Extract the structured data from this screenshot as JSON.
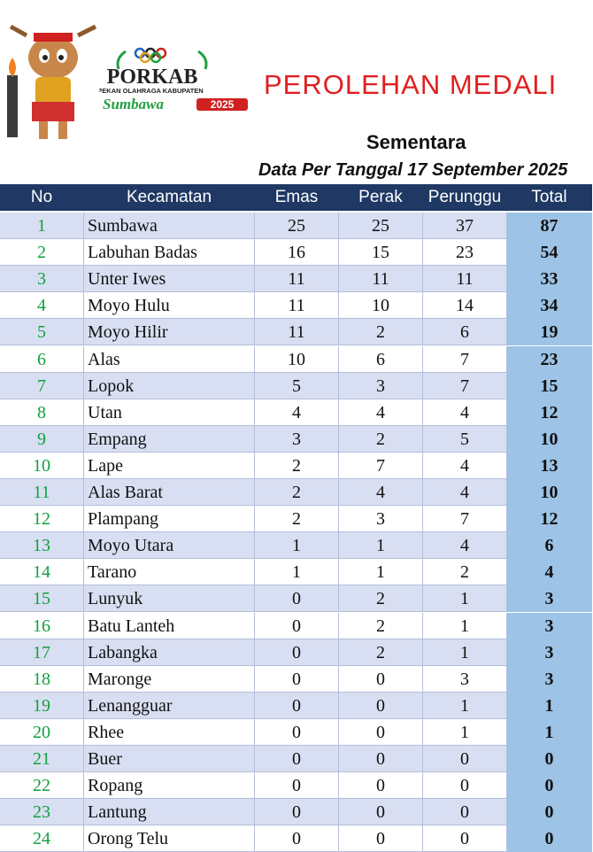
{
  "logo": {
    "name": "PORKAB",
    "subtitle": "PEKAN OLAHRAGA KABUPATEN",
    "region": "Sumbawa",
    "year": "2025"
  },
  "header": {
    "title": "PEROLEHAN MEDALI",
    "subtitle": "Sementara",
    "date": "Data Per Tanggal 17 September 2025"
  },
  "table": {
    "columns": [
      "No",
      "Kecamatan",
      "Emas",
      "Perak",
      "Perunggu",
      "Total"
    ],
    "rows": [
      [
        1,
        "Sumbawa",
        25,
        25,
        37,
        87
      ],
      [
        2,
        "Labuhan Badas",
        16,
        15,
        23,
        54
      ],
      [
        3,
        "Unter Iwes",
        11,
        11,
        11,
        33
      ],
      [
        4,
        "Moyo Hulu",
        11,
        10,
        14,
        34
      ],
      [
        5,
        "Moyo Hilir",
        11,
        2,
        6,
        19
      ],
      [
        6,
        "Alas",
        10,
        6,
        7,
        23
      ],
      [
        7,
        "Lopok",
        5,
        3,
        7,
        15
      ],
      [
        8,
        "Utan",
        4,
        4,
        4,
        12
      ],
      [
        9,
        "Empang",
        3,
        2,
        5,
        10
      ],
      [
        10,
        "Lape",
        2,
        7,
        4,
        13
      ],
      [
        11,
        "Alas Barat",
        2,
        4,
        4,
        10
      ],
      [
        12,
        "Plampang",
        2,
        3,
        7,
        12
      ],
      [
        13,
        "Moyo Utara",
        1,
        1,
        4,
        6
      ],
      [
        14,
        "Tarano",
        1,
        1,
        2,
        4
      ],
      [
        15,
        "Lunyuk",
        0,
        2,
        1,
        3
      ],
      [
        16,
        "Batu Lanteh",
        0,
        2,
        1,
        3
      ],
      [
        17,
        "Labangka",
        0,
        2,
        1,
        3
      ],
      [
        18,
        "Maronge",
        0,
        0,
        3,
        3
      ],
      [
        19,
        "Lenangguar",
        0,
        0,
        1,
        1
      ],
      [
        20,
        "Rhee",
        0,
        0,
        1,
        1
      ],
      [
        21,
        "Buer",
        0,
        0,
        0,
        0
      ],
      [
        22,
        "Ropang",
        0,
        0,
        0,
        0
      ],
      [
        23,
        "Lantung",
        0,
        0,
        0,
        0
      ],
      [
        24,
        "Orong Telu",
        0,
        0,
        0,
        0
      ]
    ]
  }
}
